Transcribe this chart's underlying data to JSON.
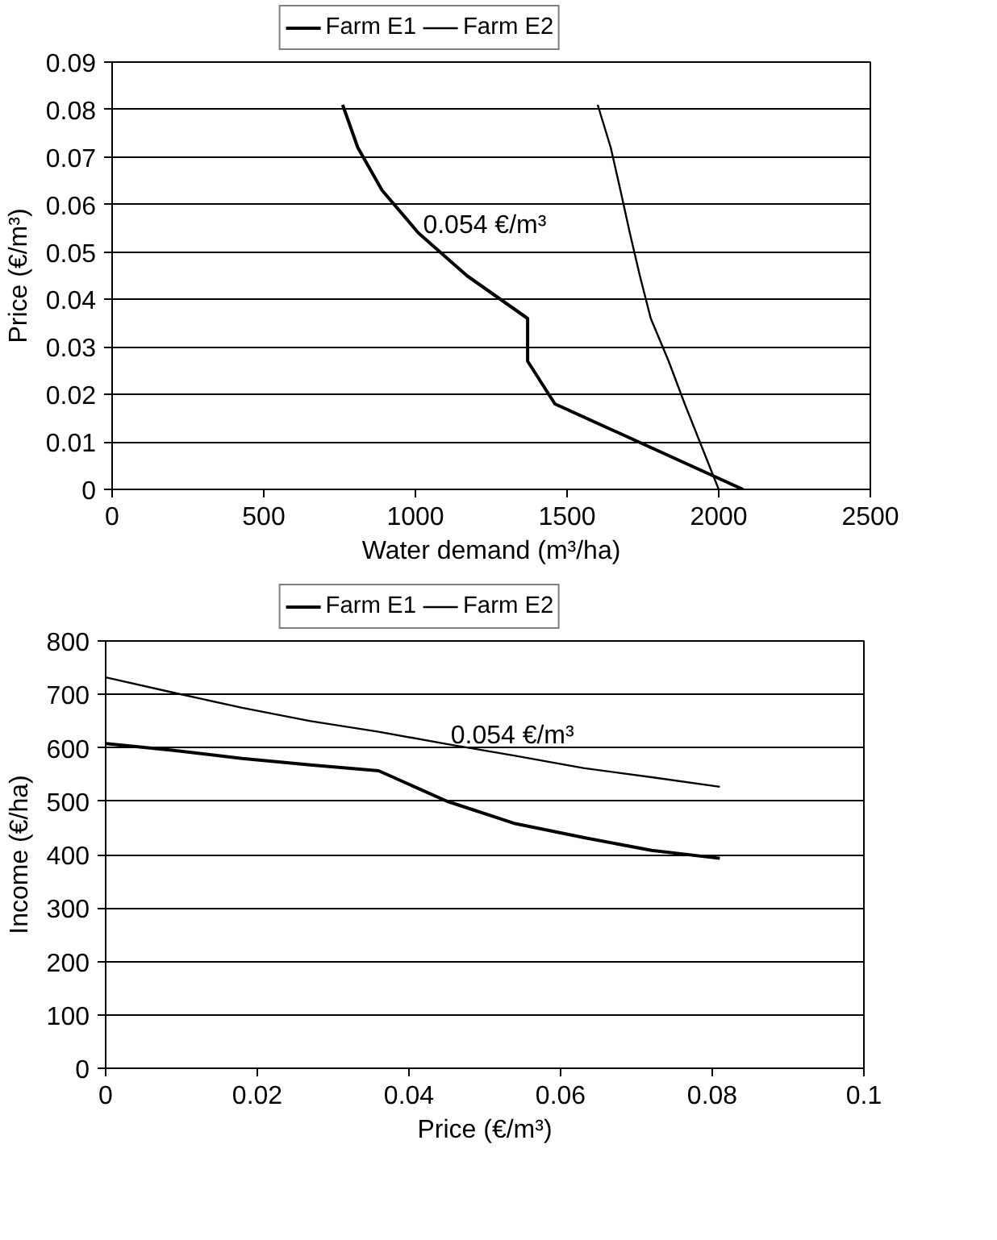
{
  "chart_data": [
    {
      "type": "line",
      "xlabel": "Water demand (m³/ha)",
      "ylabel": "Price (€/m³)",
      "xlim": [
        0,
        2500
      ],
      "xticks": [
        0,
        500,
        1000,
        1500,
        2000,
        2500
      ],
      "ylim": [
        0,
        0.09
      ],
      "yticks": [
        0,
        0.01,
        0.02,
        0.03,
        0.04,
        0.05,
        0.06,
        0.07,
        0.08,
        0.09
      ],
      "grid": "y",
      "legend": "top",
      "annotations": [
        "0.054 €/m³"
      ],
      "series": [
        {
          "name": "Farm E1",
          "color": "#000000",
          "x": [
            2080,
            1460,
            1370,
            1370,
            1170,
            1010,
            890,
            810,
            760
          ],
          "values": [
            0,
            0.018,
            0.027,
            0.036,
            0.045,
            0.054,
            0.063,
            0.072,
            0.081
          ]
        },
        {
          "name": "Farm E2",
          "color": "#000000",
          "x": [
            2000,
            1888,
            1835,
            1776,
            1740,
            1707,
            1676,
            1644,
            1601
          ],
          "values": [
            0,
            0.018,
            0.027,
            0.036,
            0.045,
            0.054,
            0.063,
            0.072,
            0.081
          ]
        }
      ]
    },
    {
      "type": "line",
      "xlabel": "Price (€/m³)",
      "ylabel": "Income (€/ha)",
      "xlim": [
        0,
        0.1
      ],
      "xticks": [
        0,
        0.02,
        0.04,
        0.06,
        0.08,
        0.1
      ],
      "ylim": [
        0,
        800
      ],
      "yticks": [
        0,
        100,
        200,
        300,
        400,
        500,
        600,
        700,
        800
      ],
      "grid": "y",
      "legend": "top",
      "annotations": [
        "0.054 €/m³"
      ],
      "series": [
        {
          "name": "Farm E1",
          "color": "#000000",
          "x": [
            0,
            0.009,
            0.018,
            0.027,
            0.036,
            0.045,
            0.054,
            0.063,
            0.072,
            0.081
          ],
          "values": [
            608,
            595,
            580,
            568,
            557,
            500,
            458,
            432,
            408,
            393
          ]
        },
        {
          "name": "Farm E2",
          "color": "#000000",
          "x": [
            0,
            0.009,
            0.018,
            0.027,
            0.036,
            0.045,
            0.054,
            0.063,
            0.072,
            0.081
          ],
          "values": [
            732,
            703,
            675,
            650,
            630,
            607,
            585,
            562,
            545,
            527
          ]
        }
      ]
    }
  ]
}
